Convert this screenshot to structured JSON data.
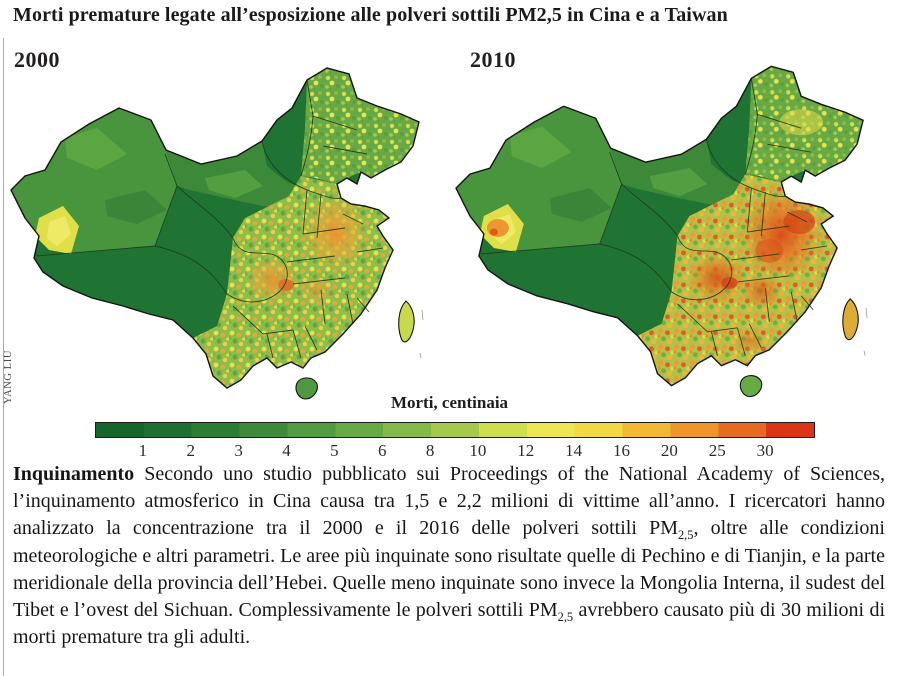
{
  "title": "Morti premature legate all’esposizione alle polveri sottili PM2,5 in Cina e a Taiwan",
  "credit": "YANG LIU",
  "maps": [
    {
      "year_label": "2000"
    },
    {
      "year_label": "2010"
    }
  ],
  "legend": {
    "title": "Morti, centinaia",
    "tick_labels": [
      "1",
      "2",
      "3",
      "4",
      "5",
      "6",
      "8",
      "10",
      "12",
      "14",
      "16",
      "20",
      "25",
      "30"
    ],
    "stop_colors": [
      "#15662c",
      "#1d7031",
      "#2b7c35",
      "#3c8a3a",
      "#519c40",
      "#68aa45",
      "#85b948",
      "#a5c94c",
      "#cede4f",
      "#ece753",
      "#f2d843",
      "#f2b833",
      "#ee962a",
      "#e66a20",
      "#d93516"
    ]
  },
  "caption": {
    "lead": "Inquinamento",
    "segments": [
      {
        "t": " Secondo uno studio pubblicato sui Proceedings of the National Academy of Sciences, l’inquinamento atmosferico in Cina causa tra 1,5 e 2,2 milioni di vittime all’anno. I ricercatori hanno analizzato la concentrazione tra il 2000 e il 2016 delle polveri sottili PM"
      },
      {
        "t": "2,5",
        "sub": true
      },
      {
        "t": ", oltre alle condizioni meteorologiche e altri parametri. Le aree più inquinate sono risultate quelle di Pechino e di Tianjin, e la parte meridionale della provincia dell’Hebei. Quelle meno inquinate sono invece la Mongolia Interna, il sudest del Tibet e l’ovest del Sichuan. Complessivamente le polveri sottili PM"
      },
      {
        "t": "2,5",
        "sub": true
      },
      {
        "t": " avrebbero causato più di 30 milioni di morti premature tra gli adulti."
      }
    ]
  },
  "colors": {
    "map_low_green": "#1f7433",
    "map_high_red": "#d93516",
    "text": "#1a1a1a"
  },
  "chart_data": {
    "type": "choropleth-map",
    "title": "Morti premature legate all’esposizione alle polveri sottili PM2,5 in Cina e a Taiwan",
    "panels": [
      "2000",
      "2010"
    ],
    "unit_label": "Morti, centinaia",
    "scale_ticks": [
      1,
      2,
      3,
      4,
      5,
      6,
      8,
      10,
      12,
      14,
      16,
      20,
      25,
      30
    ],
    "legend_position": "bottom-center",
    "visual_pattern": {
      "2000": "ovest (Tibet, Qinghai) verde scuro; Xinjiang verde medio con macchia gialla a ovest; est della Cina punteggiato giallo-arancio con aree arancio su pianura settentrionale e bacino del Sichuan; Taiwan giallo-verde",
      "2010": "stessa mappa con valori più alti: arancio-rosso intenso su Pechino, Tianjin, Hebei meridionale, Henan, Shandong e bacino del Sichuan; più arancio anche a sud e nel patch occidentale dello Xinjiang"
    }
  }
}
